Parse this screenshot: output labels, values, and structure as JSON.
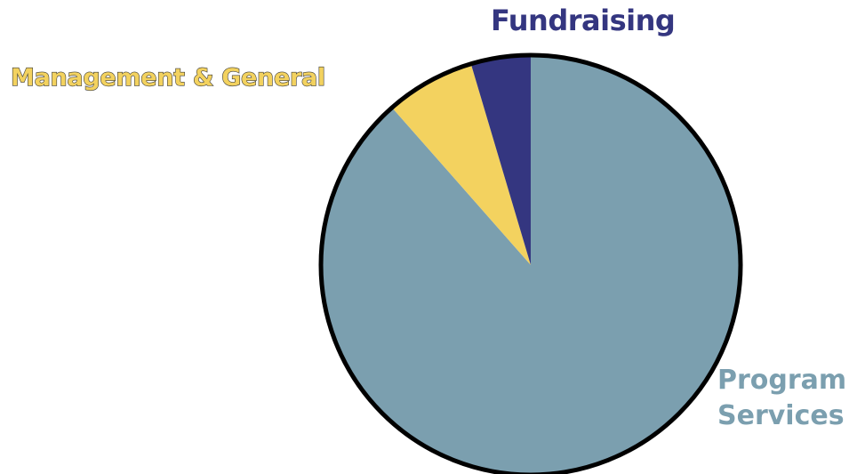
{
  "chart_data": {
    "type": "pie",
    "start_angle_deg": 0,
    "direction": "counterclockwise",
    "slices": [
      {
        "label": "Program Services",
        "value": 88.5,
        "color": "#7b9faf"
      },
      {
        "label": "Management & General",
        "value": 6.9,
        "color": "#f3d25f"
      },
      {
        "label": "Fundraising",
        "value": 4.6,
        "color": "#343680"
      }
    ],
    "labels": {
      "fundraising": "Fundraising",
      "management": "Management & General",
      "program_line1": "Program",
      "program_line2": "Services"
    },
    "outline_color": "#000000"
  }
}
